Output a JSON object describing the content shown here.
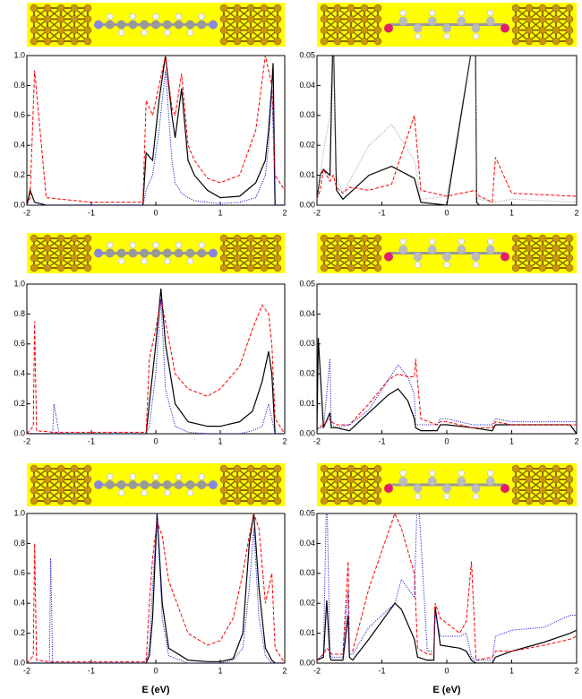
{
  "chart_data": [
    {
      "type": "line",
      "xlim": [
        -2,
        2
      ],
      "ylim": [
        0,
        1
      ],
      "xticks": [
        -2,
        -1,
        0,
        1,
        2
      ],
      "yticks": [
        {
          "value": 0,
          "label": "0.0"
        },
        0.2,
        0.4,
        0.6,
        0.8,
        {
          "value": 1,
          "label": "1.0"
        }
      ],
      "x": [
        -2,
        -1.95,
        -1.88,
        -1.7,
        -1,
        -0.2,
        -0.15,
        -0.05,
        0.05,
        0.15,
        0.25,
        0.3,
        0.4,
        0.5,
        0.6,
        0.8,
        1.0,
        1.3,
        1.55,
        1.7,
        1.75,
        1.8,
        1.82,
        1.85,
        2
      ],
      "series": [
        {
          "color": "#000000",
          "style": "solid",
          "values": [
            0,
            0.1,
            0.02,
            0,
            0,
            0,
            0.35,
            0.3,
            0.7,
            1.0,
            0.6,
            0.45,
            0.78,
            0.3,
            0.2,
            0.1,
            0.05,
            0.06,
            0.15,
            0.3,
            0.5,
            0.8,
            0.95,
            0,
            0
          ]
        },
        {
          "color": "#ff0000",
          "style": "dashed",
          "values": [
            0,
            0.05,
            0.9,
            0.05,
            0.02,
            0.02,
            0.7,
            0.6,
            0.8,
            1.0,
            0.65,
            0.6,
            0.88,
            0.4,
            0.3,
            0.18,
            0.15,
            0.2,
            0.5,
            1.0,
            0.9,
            0.8,
            0.6,
            0.2,
            0.1
          ]
        },
        {
          "color": "#0000cc",
          "style": "dotted",
          "values": [
            0,
            0,
            0,
            0,
            0,
            0,
            0.1,
            0.2,
            0.5,
            0.9,
            0.3,
            0.15,
            0.08,
            0.05,
            0.03,
            0.02,
            0.01,
            0.02,
            0.05,
            0.2,
            0.4,
            0.8,
            0.5,
            0,
            0
          ]
        }
      ]
    },
    {
      "type": "line",
      "xlim": [
        -2,
        2
      ],
      "ylim": [
        0,
        0.05
      ],
      "xticks": [
        -2,
        -1,
        0,
        1,
        2
      ],
      "yticks": [
        {
          "value": 0,
          "label": "0.00"
        },
        {
          "value": 0.01,
          "label": "0.01"
        },
        {
          "value": 0.02,
          "label": "0.02"
        },
        {
          "value": 0.03,
          "label": "0.03"
        },
        {
          "value": 0.04,
          "label": "0.04"
        },
        {
          "value": 0.05,
          "label": "0.05"
        }
      ],
      "x": [
        -2,
        -1.95,
        -1.9,
        -1.8,
        -1.75,
        -1.7,
        -1.6,
        -1.5,
        -1.2,
        -0.85,
        -0.5,
        -0.4,
        0,
        0.44,
        0.46,
        0.5,
        0.7,
        0.75,
        1,
        2
      ],
      "series": [
        {
          "color": "#000000",
          "style": "solid",
          "values": [
            0.002,
            0.01,
            0.012,
            0.01,
            0.06,
            0.005,
            0.002,
            0.004,
            0.01,
            0.013,
            0.009,
            0.001,
            0,
            0.06,
            0.001,
            0,
            0,
            0,
            0,
            0
          ]
        },
        {
          "color": "#ff0000",
          "style": "dashed",
          "values": [
            0.002,
            0.005,
            0.012,
            0.008,
            0.01,
            0.006,
            0.004,
            0.006,
            0.005,
            0.007,
            0.03,
            0.005,
            0.003,
            0.005,
            0.004,
            0.003,
            0.001,
            0.016,
            0.004,
            0.003
          ]
        },
        {
          "color": "#999999",
          "style": "dotted",
          "values": [
            0.002,
            0.01,
            0.018,
            0.03,
            0.06,
            0.01,
            0.004,
            0.008,
            0.02,
            0.027,
            0.015,
            0.002,
            0.003,
            0.06,
            0.003,
            0.002,
            0.001,
            0.001,
            0.002,
            0.001
          ]
        }
      ]
    },
    {
      "type": "line",
      "xlim": [
        -2,
        2
      ],
      "ylim": [
        0,
        1
      ],
      "xticks": [
        -2,
        -1,
        0,
        1,
        2
      ],
      "yticks": [
        {
          "value": 0,
          "label": "0.0"
        },
        0.2,
        0.4,
        0.6,
        0.8,
        {
          "value": 1,
          "label": "1.0"
        }
      ],
      "x": [
        -2,
        -1.9,
        -1.88,
        -1.85,
        -1.6,
        -1.58,
        -1.5,
        -0.15,
        -0.1,
        0,
        0.08,
        0.15,
        0.3,
        0.5,
        0.8,
        1.0,
        1.3,
        1.5,
        1.65,
        1.75,
        1.8,
        1.85,
        2
      ],
      "series": [
        {
          "color": "#000000",
          "style": "solid",
          "values": [
            0,
            0,
            0,
            0,
            0,
            0,
            0,
            0,
            0.2,
            0.6,
            0.97,
            0.6,
            0.2,
            0.08,
            0.05,
            0.05,
            0.08,
            0.15,
            0.35,
            0.55,
            0.4,
            0,
            0
          ]
        },
        {
          "color": "#ff0000",
          "style": "dashed",
          "values": [
            0,
            0.05,
            0.75,
            0.02,
            0.01,
            0.01,
            0.01,
            0.01,
            0.5,
            0.7,
            0.9,
            0.75,
            0.4,
            0.3,
            0.25,
            0.3,
            0.45,
            0.7,
            0.86,
            0.8,
            0.6,
            0.1,
            0
          ]
        },
        {
          "color": "#0000cc",
          "style": "dotted",
          "values": [
            0,
            0,
            0,
            0,
            0,
            0.2,
            0,
            0,
            0.05,
            0.4,
            0.9,
            0.3,
            0.05,
            0.01,
            0,
            0,
            0,
            0.02,
            0.05,
            0.2,
            0.1,
            0,
            0
          ]
        }
      ]
    },
    {
      "type": "line",
      "xlim": [
        -2,
        2
      ],
      "ylim": [
        0,
        0.05
      ],
      "xticks": [
        -2,
        -1,
        0,
        1,
        2
      ],
      "yticks": [
        {
          "value": 0,
          "label": "0.00"
        },
        {
          "value": 0.01,
          "label": "0.01"
        },
        {
          "value": 0.02,
          "label": "0.02"
        },
        {
          "value": 0.03,
          "label": "0.03"
        },
        {
          "value": 0.04,
          "label": "0.04"
        },
        {
          "value": 0.05,
          "label": "0.05"
        }
      ],
      "x": [
        -2,
        -1.98,
        -1.9,
        -1.8,
        -1.78,
        -1.7,
        -1.5,
        -1.2,
        -0.9,
        -0.75,
        -0.6,
        -0.5,
        -0.48,
        -0.4,
        -0.15,
        -0.1,
        0,
        0.4,
        0.7,
        0.75,
        1,
        1.5,
        1.9,
        2
      ],
      "series": [
        {
          "color": "#000000",
          "style": "solid",
          "values": [
            0.001,
            0.032,
            0.002,
            0.007,
            0.002,
            0.002,
            0.001,
            0.007,
            0.013,
            0.015,
            0.011,
            0.005,
            0.002,
            0.001,
            0.001,
            0.003,
            0.003,
            0.002,
            0.001,
            0.003,
            0.003,
            0.003,
            0.003,
            0
          ]
        },
        {
          "color": "#ff0000",
          "style": "dashed",
          "values": [
            0.001,
            0.002,
            0.003,
            0.005,
            0.004,
            0.003,
            0.003,
            0.01,
            0.018,
            0.02,
            0.019,
            0.019,
            0.025,
            0.005,
            0.003,
            0.004,
            0.004,
            0.002,
            0.002,
            0.004,
            0.003,
            0.003,
            0.003,
            0.003
          ]
        },
        {
          "color": "#0000cc",
          "style": "dotted",
          "values": [
            0.001,
            0.002,
            0.002,
            0.025,
            0.003,
            0.002,
            0.003,
            0.008,
            0.018,
            0.023,
            0.019,
            0.013,
            0.003,
            0.003,
            0.003,
            0.005,
            0.005,
            0.003,
            0.003,
            0.005,
            0.004,
            0.004,
            0.004,
            0.004
          ]
        }
      ]
    },
    {
      "type": "line",
      "xlim": [
        -2,
        2
      ],
      "ylim": [
        0,
        1
      ],
      "xticks": [
        -2,
        -1,
        0,
        1,
        2
      ],
      "yticks": [
        {
          "value": 0,
          "label": "0.0"
        },
        0.2,
        0.4,
        0.6,
        0.8,
        {
          "value": 1,
          "label": "1.0"
        }
      ],
      "xlabel": "E  (eV)",
      "x": [
        -2,
        -1.9,
        -1.88,
        -1.85,
        -1.65,
        -1.63,
        -1.6,
        -0.15,
        -0.1,
        -0.05,
        0.02,
        0.1,
        0.2,
        0.5,
        0.8,
        1.0,
        1.2,
        1.35,
        1.45,
        1.52,
        1.6,
        1.7,
        1.8,
        1.85,
        2
      ],
      "series": [
        {
          "color": "#000000",
          "style": "solid",
          "values": [
            0,
            0,
            0,
            0,
            0,
            0,
            0,
            0,
            0.05,
            0.3,
            1.0,
            0.4,
            0.1,
            0.02,
            0.01,
            0.01,
            0.03,
            0.2,
            0.8,
            1.0,
            0.5,
            0.1,
            0.02,
            0,
            0
          ]
        },
        {
          "color": "#ff0000",
          "style": "dashed",
          "values": [
            0,
            0.05,
            0.8,
            0.02,
            0.01,
            0.01,
            0.01,
            0.01,
            0.4,
            0.7,
            0.95,
            0.85,
            0.55,
            0.2,
            0.12,
            0.15,
            0.3,
            0.6,
            0.85,
            1.0,
            0.9,
            0.4,
            0.6,
            0.1,
            0
          ]
        },
        {
          "color": "#0000cc",
          "style": "dotted",
          "values": [
            0,
            0,
            0,
            0,
            0,
            0.7,
            0,
            0,
            0.1,
            0.5,
            1.0,
            0.3,
            0.05,
            0,
            0,
            0,
            0.02,
            0.1,
            0.5,
            0.9,
            0.3,
            0.05,
            0,
            0,
            0
          ]
        }
      ]
    },
    {
      "type": "line",
      "xlim": [
        -2,
        2
      ],
      "ylim": [
        0,
        0.05
      ],
      "xticks": [
        -2,
        -1,
        0,
        1,
        2
      ],
      "yticks": [
        {
          "value": 0,
          "label": "0.00"
        },
        {
          "value": 0.01,
          "label": "0.01"
        },
        {
          "value": 0.02,
          "label": "0.02"
        },
        {
          "value": 0.03,
          "label": "0.03"
        },
        {
          "value": 0.04,
          "label": "0.04"
        },
        {
          "value": 0.05,
          "label": "0.05"
        }
      ],
      "xlabel": "E  (eV)",
      "x": [
        -2,
        -1.9,
        -1.85,
        -1.8,
        -1.78,
        -1.6,
        -1.52,
        -1.5,
        -1.45,
        -1.2,
        -0.8,
        -0.7,
        -0.5,
        -0.45,
        -0.3,
        -0.2,
        -0.18,
        -0.1,
        0.2,
        0.3,
        0.38,
        0.45,
        0.7,
        0.75,
        1,
        1.5,
        1.9,
        2
      ],
      "series": [
        {
          "color": "#000000",
          "style": "solid",
          "values": [
            0.001,
            0.002,
            0.021,
            0.002,
            0.001,
            0.001,
            0.016,
            0.002,
            0.001,
            0.008,
            0.02,
            0.018,
            0.008,
            0.002,
            0.001,
            0.001,
            0.019,
            0.006,
            0.005,
            0.004,
            0.001,
            0,
            0,
            0.002,
            0.004,
            0.007,
            0.01,
            0.011
          ]
        },
        {
          "color": "#ff0000",
          "style": "dashed",
          "values": [
            0.001,
            0.003,
            0.005,
            0.004,
            0.003,
            0.003,
            0.034,
            0.004,
            0.004,
            0.025,
            0.05,
            0.045,
            0.03,
            0.005,
            0.003,
            0.003,
            0.02,
            0.015,
            0.01,
            0.014,
            0.034,
            0.001,
            0.002,
            0.004,
            0.004,
            0.006,
            0.008,
            0.009
          ]
        },
        {
          "color": "#0000cc",
          "style": "dotted",
          "values": [
            0.001,
            0.003,
            0.06,
            0.003,
            0.002,
            0.002,
            0.024,
            0.003,
            0.003,
            0.012,
            0.02,
            0.028,
            0.022,
            0.06,
            0.004,
            0.004,
            0.017,
            0.009,
            0.009,
            0.01,
            0.002,
            0.001,
            0.001,
            0.009,
            0.011,
            0.012,
            0.016,
            0.016
          ]
        }
      ]
    }
  ]
}
